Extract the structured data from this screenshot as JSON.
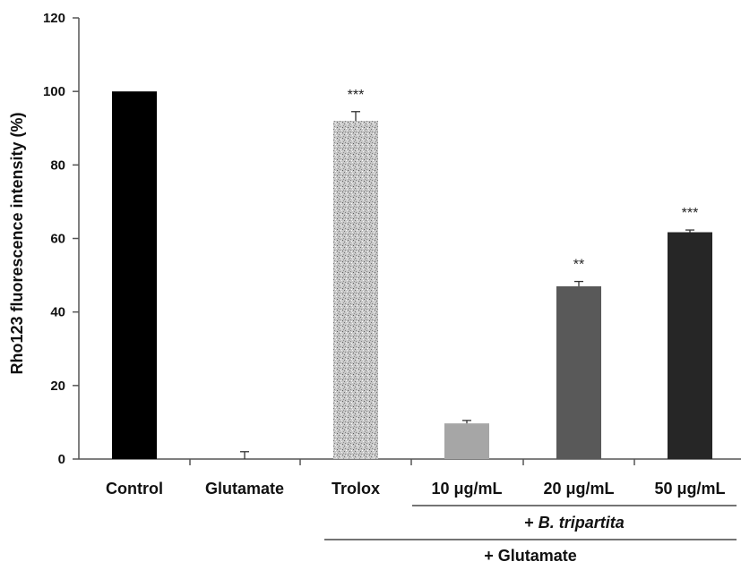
{
  "chart_data": {
    "type": "bar",
    "ylabel": "Rho123 fluorescence intensity (%)",
    "xlabel": "",
    "ylim": [
      0,
      120
    ],
    "yticks": [
      0,
      20,
      40,
      60,
      80,
      100,
      120
    ],
    "categories": [
      "Control",
      "Glutamate",
      "Trolox",
      "10 μg/mL",
      "20 μg/mL",
      "50 μg/mL"
    ],
    "values": [
      100,
      0,
      92,
      9.7,
      47,
      61.7
    ],
    "errors": [
      0,
      2,
      2.5,
      0.8,
      1.3,
      0.6
    ],
    "significance": [
      "",
      "",
      "***",
      "",
      "**",
      "***"
    ],
    "bar_colors": [
      "#000000",
      "#000000",
      "#b0b0b0",
      "#a6a6a6",
      "#595959",
      "#262626"
    ],
    "bar_patterns": [
      "solid",
      "solid",
      "speckle",
      "solid",
      "solid",
      "solid"
    ],
    "groups": [
      {
        "label": "+ B. tripartita",
        "label_prefix": "+ ",
        "label_italic": "B. tripartita",
        "categories": [
          "10 μg/mL",
          "20 μg/mL",
          "50 μg/mL"
        ]
      },
      {
        "label": "+ Glutamate",
        "categories": [
          "Trolox",
          "10 μg/mL",
          "20 μg/mL",
          "50 μg/mL"
        ]
      }
    ]
  }
}
